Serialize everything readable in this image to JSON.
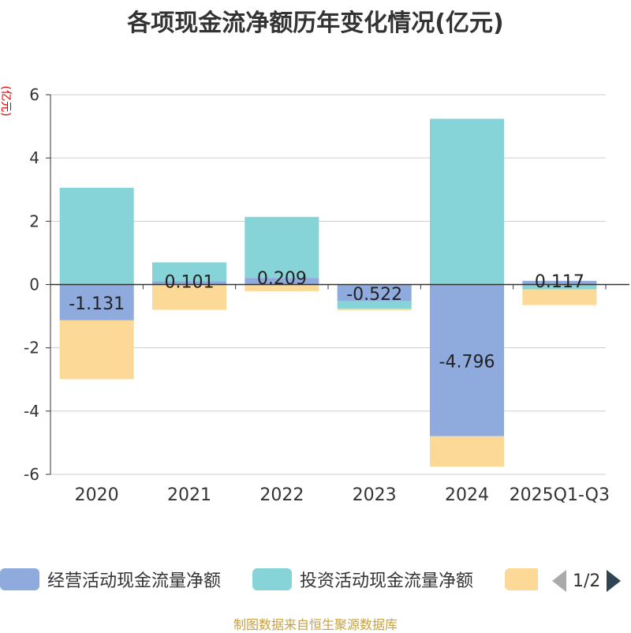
{
  "chart_data": {
    "type": "bar",
    "stacked": true,
    "title": "各项现金流净额历年变化情况(亿元)",
    "ylabel": "(亿元)",
    "categories": [
      "2020",
      "2021",
      "2022",
      "2023",
      "2024",
      "2025Q1-Q3"
    ],
    "ylim": [
      -6,
      6
    ],
    "yticks": [
      6,
      4,
      2,
      0,
      -2,
      -4,
      -6
    ],
    "grid": true,
    "legend_position": "bottom",
    "series": [
      {
        "name": "经营活动现金流量净额",
        "color": "#8faadc",
        "values": [
          -1.131,
          0.101,
          0.209,
          -0.522,
          -4.796,
          0.117
        ],
        "labels": [
          "-1.131",
          "0.101",
          "0.209",
          "-0.522",
          "-4.796",
          "0.117"
        ]
      },
      {
        "name": "投资活动现金流量净额",
        "color": "#86d4d8",
        "values": [
          3.06,
          0.6,
          1.93,
          -0.24,
          5.24,
          -0.15
        ]
      },
      {
        "name": "",
        "color": "#fdd998",
        "values": [
          -1.86,
          -0.8,
          -0.21,
          -0.05,
          -0.96,
          -0.5
        ]
      }
    ]
  },
  "legend": {
    "page": "1/2"
  },
  "footer": "制图数据来自恒生聚源数据库"
}
